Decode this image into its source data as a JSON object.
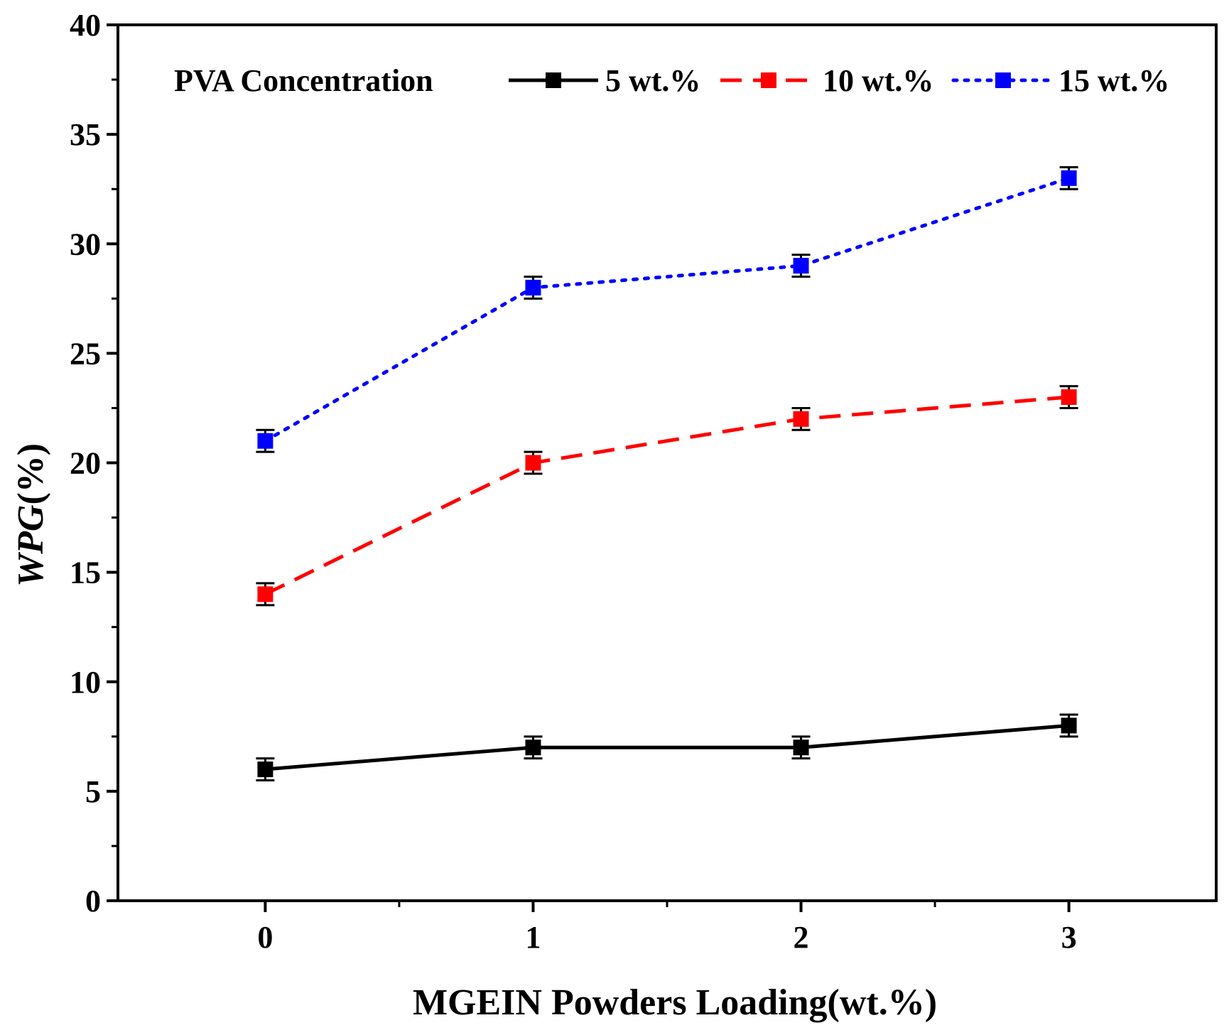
{
  "chart_data": {
    "type": "line",
    "title": "",
    "xlabel": "MGEIN Powders Loading(wt.%)",
    "ylabel_italic": "WPG",
    "ylabel_rest": "(%)",
    "x": [
      0,
      1,
      2,
      3
    ],
    "x_tick_labels": [
      "0",
      "1",
      "2",
      "3"
    ],
    "xlim": [
      -0.55,
      3.55
    ],
    "ylim": [
      0,
      40
    ],
    "y_ticks": [
      0,
      5,
      10,
      15,
      20,
      25,
      30,
      35,
      40
    ],
    "y_tick_labels": [
      "0",
      "5",
      "10",
      "15",
      "20",
      "25",
      "30",
      "35",
      "40"
    ],
    "grid": false,
    "legend": {
      "title": "PVA Concentration",
      "placement": "top",
      "orientation": "horizontal"
    },
    "series": [
      {
        "name": "5 wt.%",
        "color": "#000000",
        "line_style": "solid",
        "marker": "square",
        "values": [
          6,
          7,
          7,
          8
        ],
        "errors": [
          0.5,
          0.5,
          0.5,
          0.5
        ]
      },
      {
        "name": "10 wt.%",
        "color": "#ff0000",
        "line_style": "dashed",
        "marker": "square",
        "values": [
          14,
          20,
          22,
          23
        ],
        "errors": [
          0.5,
          0.5,
          0.5,
          0.5
        ]
      },
      {
        "name": "15 wt.%",
        "color": "#0000ff",
        "line_style": "dotted",
        "marker": "square",
        "values": [
          21,
          28,
          29,
          33
        ],
        "errors": [
          0.5,
          0.5,
          0.5,
          0.5
        ]
      }
    ]
  }
}
